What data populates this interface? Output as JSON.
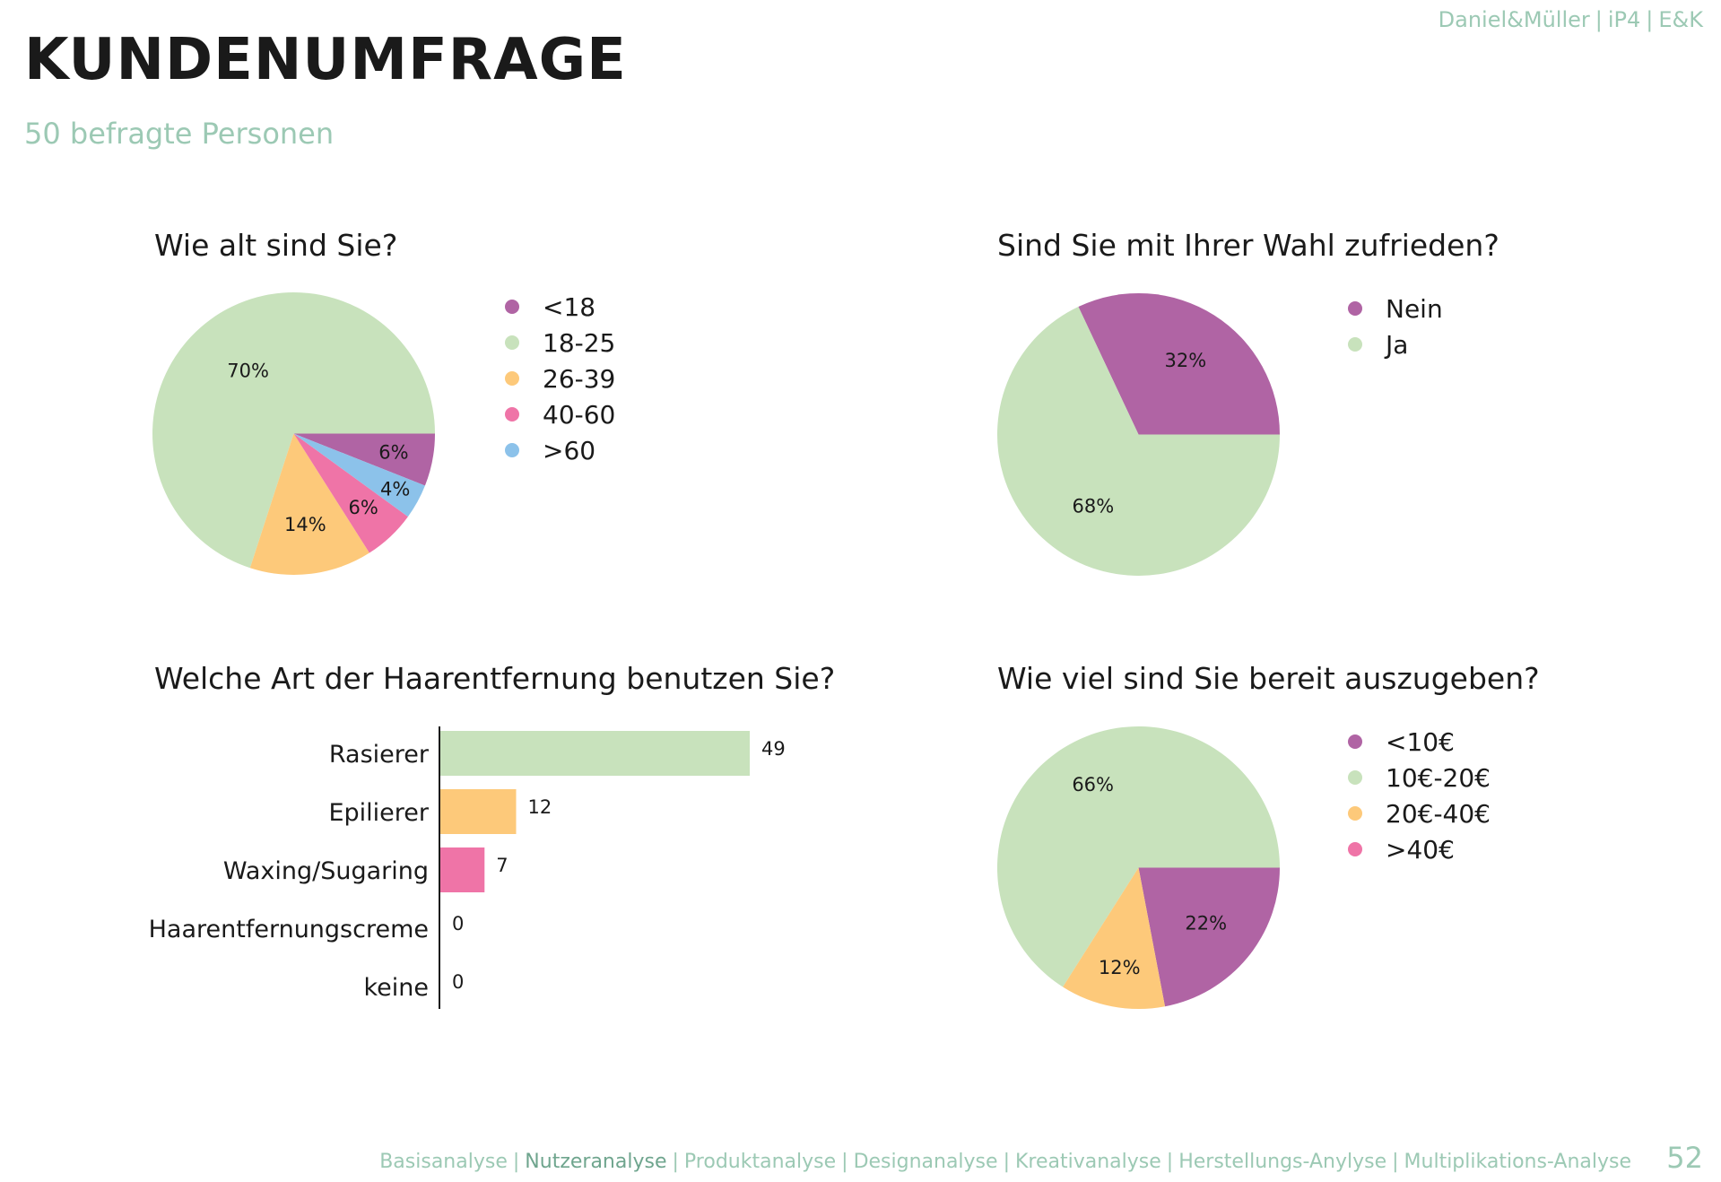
{
  "header": {
    "brand": [
      "Daniel&Müller",
      "iP4",
      "E&K"
    ],
    "title": "KUNDENUMFRAGE",
    "subtitle": "50 befragte Personen"
  },
  "colors": {
    "purple": "#b064a4",
    "green": "#c8e2bc",
    "orange": "#fdc97a",
    "pink": "#ef74a7",
    "blue": "#8cc2ea"
  },
  "chart_data": [
    {
      "type": "pie",
      "title": "Wie alt sind Sie?",
      "slices": [
        {
          "label": "<18",
          "value": 6,
          "display": "6%",
          "color": "#b064a4"
        },
        {
          "label": "18-25",
          "value": 70,
          "display": "70%",
          "color": "#c8e2bc"
        },
        {
          "label": "26-39",
          "value": 14,
          "display": "14%",
          "color": "#fdc97a"
        },
        {
          "label": "40-60",
          "value": 6,
          "display": "6%",
          "color": "#ef74a7"
        },
        {
          "label": ">60",
          "value": 4,
          "display": "4%",
          "color": "#8cc2ea"
        }
      ],
      "legend": [
        "<18",
        "18-25",
        "26-39",
        "40-60",
        ">60"
      ],
      "legend_position": "right"
    },
    {
      "type": "pie",
      "title": "Sind Sie mit Ihrer Wahl zufrieden?",
      "slices": [
        {
          "label": "Nein",
          "value": 32,
          "display": "32%",
          "color": "#b064a4"
        },
        {
          "label": "Ja",
          "value": 68,
          "display": "68%",
          "color": "#c8e2bc"
        }
      ],
      "legend": [
        "Nein",
        "Ja"
      ],
      "legend_position": "right"
    },
    {
      "type": "bar",
      "orientation": "horizontal",
      "title": "Welche Art der Haarentfernung benutzen Sie?",
      "categories": [
        "Rasierer",
        "Epilierer",
        "Waxing/Sugaring",
        "Haarentfernungscreme",
        "keine"
      ],
      "values": [
        49,
        12,
        7,
        0,
        0
      ],
      "colors": [
        "#c8e2bc",
        "#fdc97a",
        "#ef74a7",
        "#b064a4",
        "#8cc2ea"
      ],
      "xlim": [
        0,
        49
      ]
    },
    {
      "type": "pie",
      "title": "Wie viel sind Sie bereit auszugeben?",
      "slices": [
        {
          "label": "<10€",
          "value": 22,
          "display": "22%",
          "color": "#b064a4"
        },
        {
          "label": "10€-20€",
          "value": 66,
          "display": "66%",
          "color": "#c8e2bc"
        },
        {
          "label": "20€-40€",
          "value": 12,
          "display": "12%",
          "color": "#fdc97a"
        },
        {
          "label": ">40€",
          "value": 0,
          "display": "",
          "color": "#ef74a7"
        }
      ],
      "legend": [
        "<10€",
        "10€-20€",
        "20€-40€",
        ">40€"
      ],
      "legend_position": "right"
    }
  ],
  "footer": {
    "nav": [
      "Basisanalyse",
      "Nutzeranalyse",
      "Produktanalyse",
      "Designanalyse",
      "Kreativanalyse",
      "Herstellungs-Anylyse",
      "Multiplikations-Analyse"
    ],
    "active_index": 1,
    "page_number": "52"
  }
}
